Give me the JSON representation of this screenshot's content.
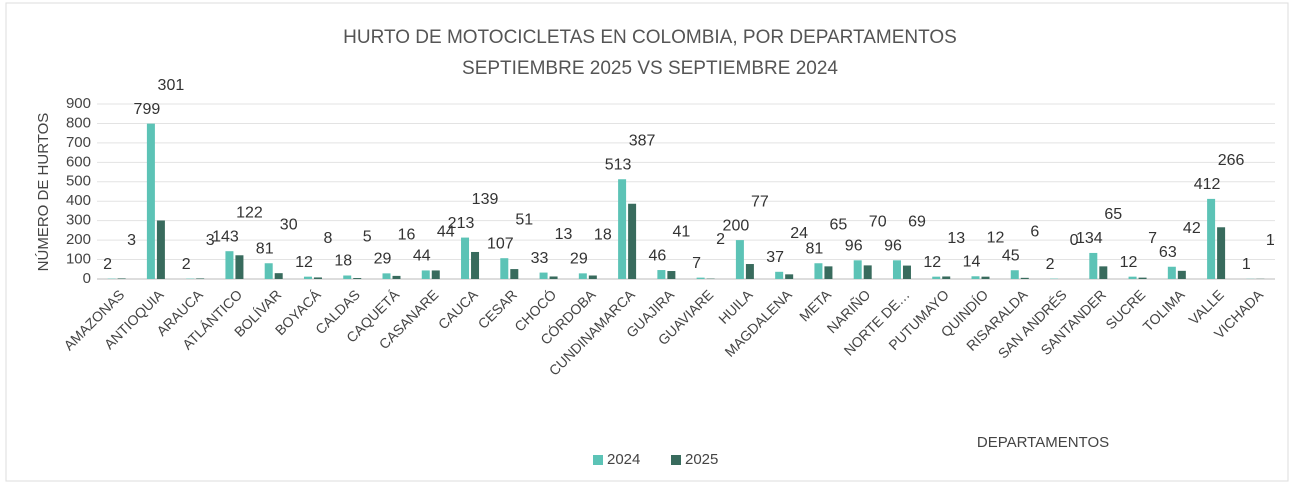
{
  "chart_data": {
    "type": "bar",
    "title": "HURTO DE MOTOCICLETAS EN COLOMBIA, POR DEPARTAMENTOS",
    "subtitle": "SEPTIEMBRE 2025 VS SEPTIEMBRE 2024",
    "y_label": "NÚMERO DE HURTOS",
    "x_label": "DEPARTAMENTOS",
    "categories": [
      "AMAZONAS",
      "ANTIOQUIA",
      "ARAUCA",
      "ATLÁNTICO",
      "BOLÍVAR",
      "BOYACÁ",
      "CALDAS",
      "CAQUETÁ",
      "CASANARE",
      "CAUCA",
      "CESAR",
      "CHOCÓ",
      "CÓRDOBA",
      "CUNDINAMARCA",
      "GUAJIRA",
      "GUAVIARE",
      "HUILA",
      "MAGDALENA",
      "META",
      "NARIÑO",
      "NORTE DE…",
      "PUTUMAYO",
      "QUINDÍO",
      "RISARALDA",
      "SAN ANDRÉS",
      "SANTANDER",
      "SUCRE",
      "TOLIMA",
      "VALLE",
      "VICHADA"
    ],
    "series": [
      {
        "name": "2024",
        "color": "#5cc3b6",
        "values": [
          2,
          799,
          2,
          143,
          81,
          12,
          18,
          29,
          44,
          213,
          107,
          33,
          29,
          513,
          46,
          7,
          200,
          37,
          81,
          96,
          96,
          12,
          14,
          45,
          2,
          134,
          12,
          63,
          412,
          1
        ]
      },
      {
        "name": "2025",
        "color": "#386b5d",
        "values": [
          3,
          301,
          3,
          122,
          30,
          8,
          5,
          16,
          44,
          139,
          51,
          13,
          18,
          387,
          41,
          2,
          77,
          24,
          65,
          70,
          69,
          13,
          12,
          6,
          0,
          65,
          7,
          42,
          266,
          1
        ]
      }
    ],
    "ylim": [
      0,
      900
    ],
    "yticks": [
      0,
      100,
      200,
      300,
      400,
      500,
      600,
      700,
      800,
      900
    ],
    "grid": true,
    "legend": "bottom"
  }
}
